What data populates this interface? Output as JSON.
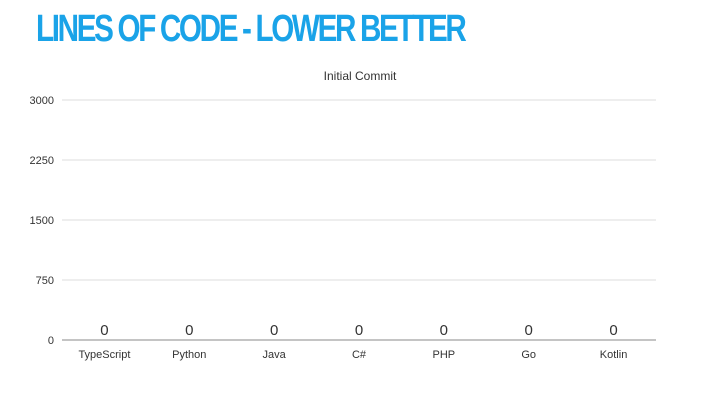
{
  "slide": {
    "title": "LINES OF CODE  - LOWER BETTER",
    "title_color": "#1aa3e8"
  },
  "chart_data": {
    "type": "bar",
    "title": "Initial Commit",
    "categories": [
      "TypeScript",
      "Python",
      "Java",
      "C#",
      "PHP",
      "Go",
      "Kotlin"
    ],
    "values": [
      0,
      0,
      0,
      0,
      0,
      0,
      0
    ],
    "data_labels": [
      "0",
      "0",
      "0",
      "0",
      "0",
      "0",
      "0"
    ],
    "y_ticks": [
      0,
      750,
      1500,
      2250,
      3000
    ],
    "y_tick_labels": [
      "0",
      "750",
      "1500",
      "2250",
      "3000"
    ],
    "ylim": [
      0,
      3000
    ],
    "xlabel": "",
    "ylabel": "",
    "grid": true,
    "colors": {
      "text": "#333333",
      "grid": "#dddddd",
      "axis": "#888888",
      "bar": "#1aa3e8"
    }
  }
}
